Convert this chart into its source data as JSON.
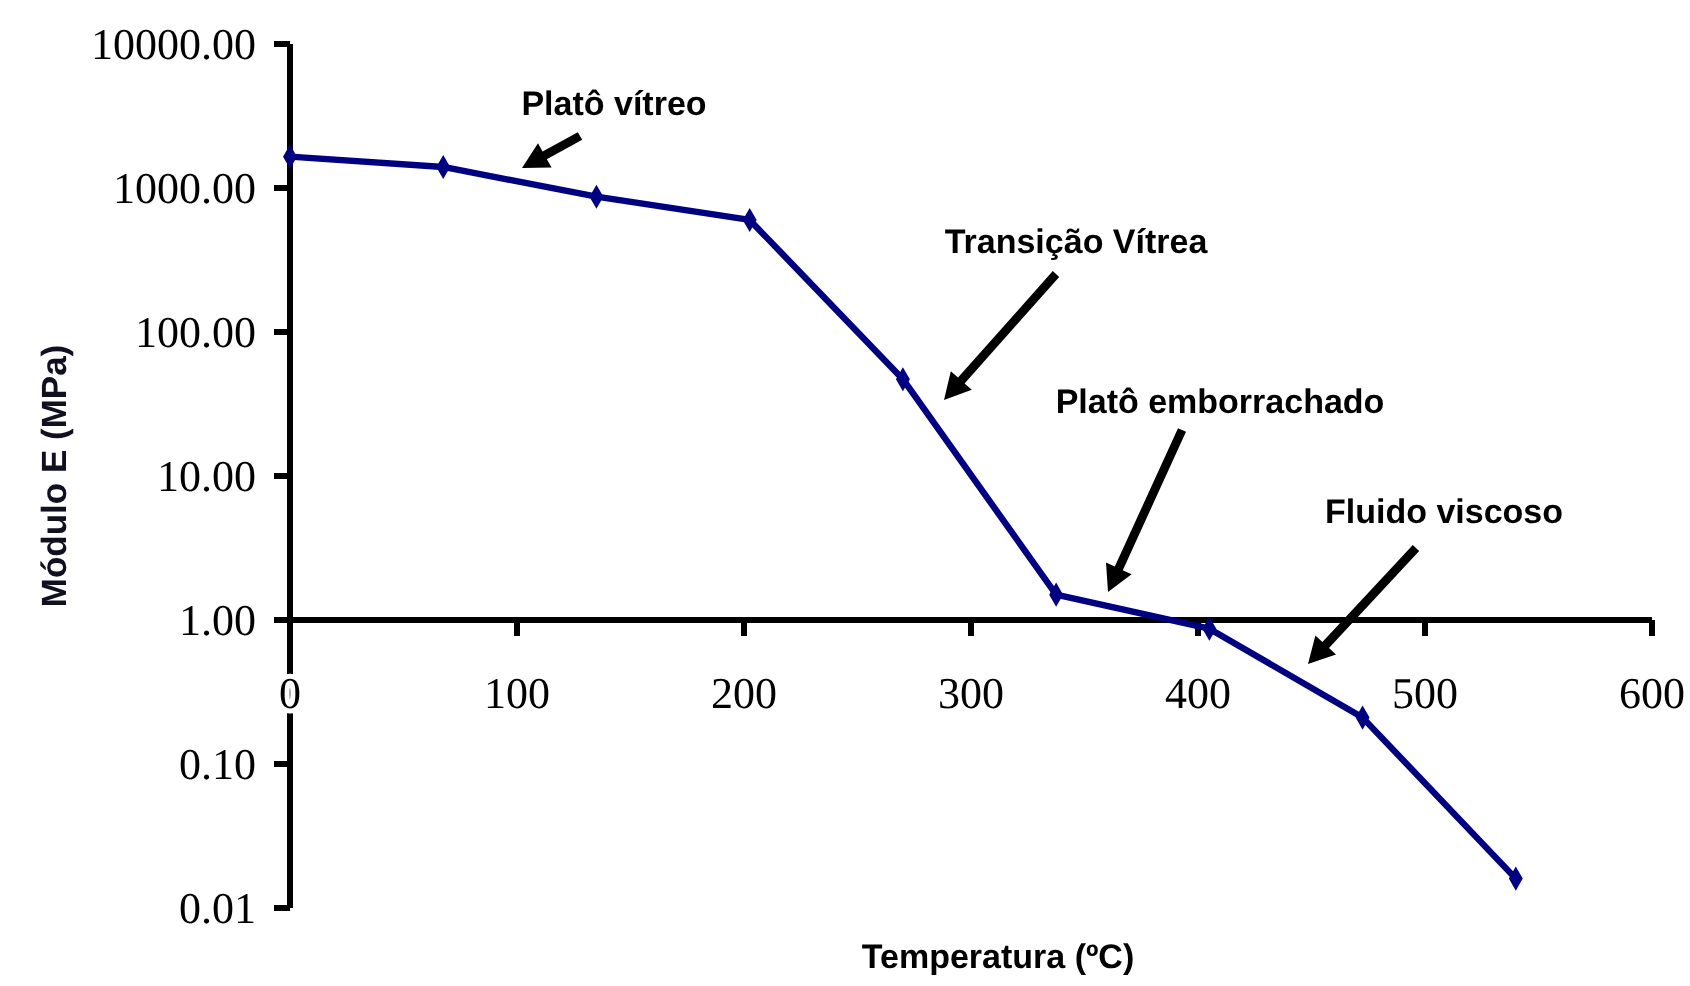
{
  "chart_data": {
    "type": "line",
    "xlabel": "Temperatura (ºC)",
    "ylabel": "Módulo E (MPa)",
    "x": [
      0,
      67.5,
      135,
      202.5,
      270,
      337.5,
      405,
      472.5,
      540
    ],
    "series": [
      {
        "color": "#000080",
        "values": [
          1650,
          1400,
          870,
          600,
          47,
          1.5,
          0.87,
          0.21,
          0.016
        ]
      }
    ],
    "xlim": [
      0,
      600
    ],
    "xticks": [
      0,
      100,
      200,
      300,
      400,
      500,
      600
    ],
    "ylim": [
      0.01,
      10000
    ],
    "yticks": [
      {
        "value": 0.01,
        "label": "0.01"
      },
      {
        "value": 0.1,
        "label": "0.10"
      },
      {
        "value": 1,
        "label": "1.00"
      },
      {
        "value": 10,
        "label": "10.00"
      },
      {
        "value": 100,
        "label": "100.00"
      },
      {
        "value": 1000,
        "label": "1000.00"
      },
      {
        "value": 10000,
        "label": "10000.00"
      }
    ],
    "log": true,
    "marker": "diamond",
    "annotations": [
      "Platô vítreo",
      "Transição Vítrea",
      "Platô emborrachado",
      "Fluido viscoso"
    ]
  }
}
